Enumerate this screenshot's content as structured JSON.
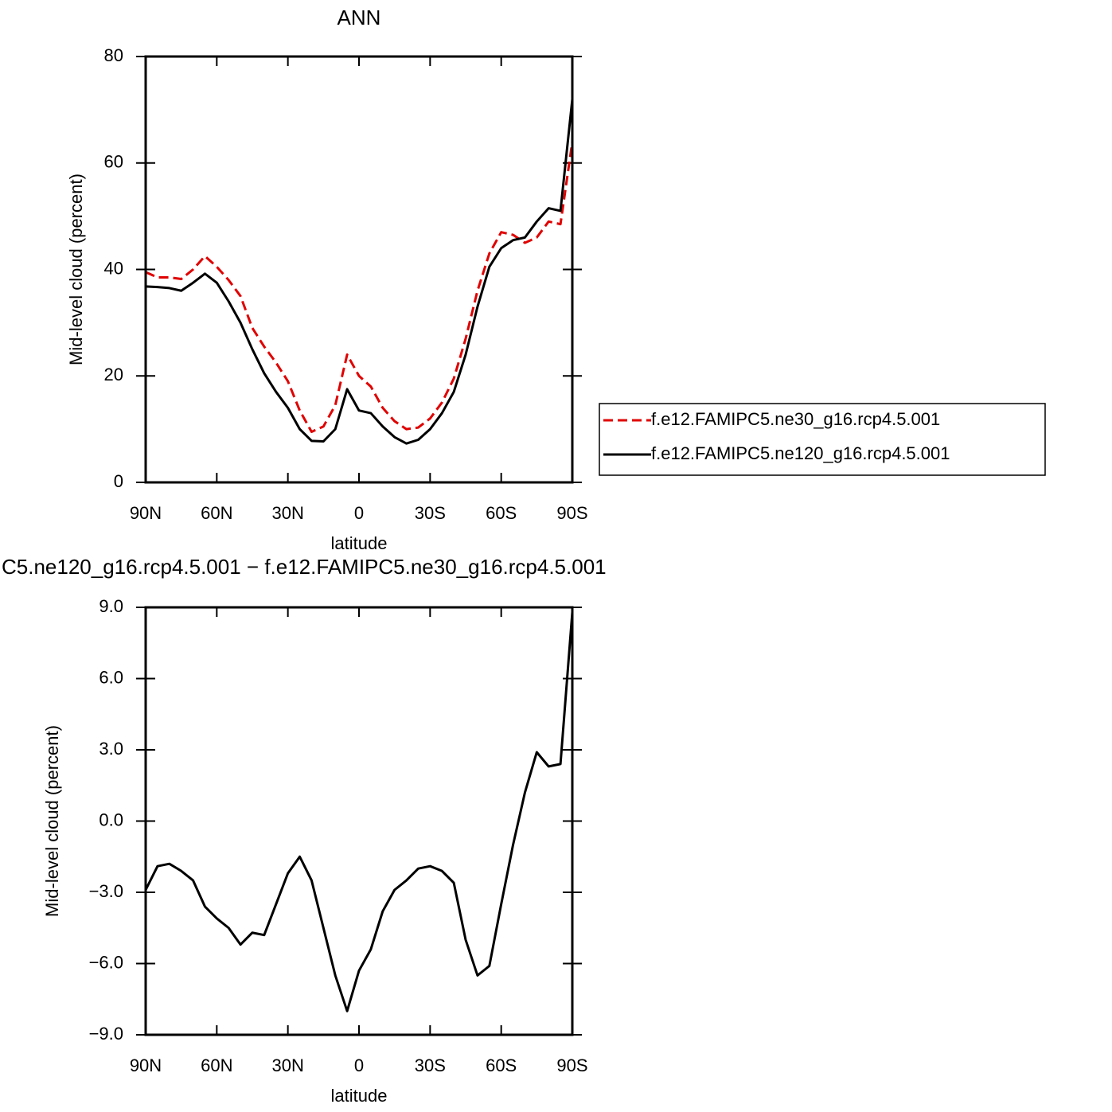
{
  "chart_data": [
    {
      "type": "line",
      "title": "ANN",
      "xlabel": "latitude",
      "ylabel": "Mid-level cloud (percent)",
      "x": [
        90,
        85,
        80,
        75,
        70,
        65,
        60,
        55,
        50,
        45,
        40,
        35,
        30,
        25,
        20,
        15,
        10,
        5,
        0,
        -5,
        -10,
        -15,
        -20,
        -25,
        -30,
        -35,
        -40,
        -45,
        -50,
        -55,
        -60,
        -65,
        -70,
        -75,
        -80,
        -85,
        -90
      ],
      "xlim": [
        90,
        -90
      ],
      "xticks": [
        {
          "value": 90,
          "label": "90N"
        },
        {
          "value": 60,
          "label": "60N"
        },
        {
          "value": 30,
          "label": "30N"
        },
        0,
        {
          "value": -30,
          "label": "30S"
        },
        {
          "value": -60,
          "label": "60S"
        },
        {
          "value": -90,
          "label": "90S"
        }
      ],
      "ylim": [
        0,
        80
      ],
      "yticks": [
        0,
        20,
        40,
        60,
        80
      ],
      "legend": "right",
      "series": [
        {
          "name": "f.e12.FAMIPC5.ne30_g16.rcp4.5.001",
          "color": "#e00000",
          "dashed": true,
          "values": [
            39.5,
            38.5,
            38.5,
            38.2,
            40,
            42.5,
            40.5,
            38,
            35,
            29,
            25.5,
            22.5,
            19,
            13.5,
            9.5,
            10.5,
            14.5,
            24,
            20,
            18,
            14,
            11.5,
            10,
            10.3,
            12,
            15,
            19.5,
            27,
            36,
            43,
            47,
            46.5,
            45,
            46,
            49,
            48.5,
            64
          ]
        },
        {
          "name": "f.e12.FAMIPC5.ne120_g16.rcp4.5.001",
          "color": "#000000",
          "dashed": false,
          "values": [
            36.8,
            36.7,
            36.5,
            36,
            37.5,
            39.2,
            37.5,
            34,
            30,
            25,
            20.5,
            17,
            14,
            10,
            7.8,
            7.7,
            10,
            17.5,
            13.5,
            13,
            10.5,
            8.5,
            7.3,
            8,
            10,
            13,
            17,
            24,
            33,
            40.5,
            44,
            45.5,
            46,
            49,
            51.5,
            51,
            72
          ]
        }
      ]
    },
    {
      "type": "line",
      "title": "C5.ne120_g16.rcp4.5.001 − f.e12.FAMIPC5.ne30_g16.rcp4.5.001",
      "xlabel": "latitude",
      "ylabel": "Mid-level cloud (percent)",
      "x": [
        90,
        85,
        80,
        75,
        70,
        65,
        60,
        55,
        50,
        45,
        40,
        35,
        30,
        25,
        20,
        15,
        10,
        5,
        0,
        -5,
        -10,
        -15,
        -20,
        -25,
        -30,
        -35,
        -40,
        -45,
        -50,
        -55,
        -60,
        -65,
        -70,
        -75,
        -80,
        -85,
        -90
      ],
      "xlim": [
        90,
        -90
      ],
      "xticks": [
        {
          "value": 90,
          "label": "90N"
        },
        {
          "value": 60,
          "label": "60N"
        },
        {
          "value": 30,
          "label": "30N"
        },
        0,
        {
          "value": -30,
          "label": "30S"
        },
        {
          "value": -60,
          "label": "60S"
        },
        {
          "value": -90,
          "label": "90S"
        }
      ],
      "ylim": [
        -9,
        9
      ],
      "yticks": [
        {
          "value": -9,
          "label": "−9.0"
        },
        {
          "value": -6,
          "label": "−6.0"
        },
        {
          "value": -3,
          "label": "−3.0"
        },
        {
          "value": 0,
          "label": "0.0"
        },
        {
          "value": 3,
          "label": "3.0"
        },
        {
          "value": 6,
          "label": "6.0"
        },
        {
          "value": 9,
          "label": "9.0"
        }
      ],
      "series": [
        {
          "color": "#000000",
          "dashed": false,
          "values": [
            -2.9,
            -1.9,
            -1.8,
            -2.1,
            -2.5,
            -3.6,
            -4.1,
            -4.5,
            -5.2,
            -4.7,
            -4.8,
            -3.5,
            -2.2,
            -1.5,
            -2.5,
            -4.5,
            -6.5,
            -8,
            -6.3,
            -5.4,
            -3.8,
            -2.9,
            -2.5,
            -2,
            -1.9,
            -2.1,
            -2.6,
            -5,
            -6.5,
            -6.1,
            -3.5,
            -1,
            1.2,
            2.9,
            2.3,
            2.4,
            8.8
          ]
        }
      ]
    }
  ]
}
